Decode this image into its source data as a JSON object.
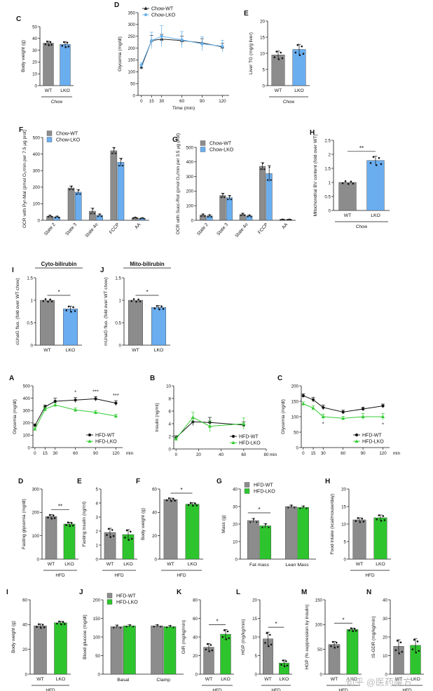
{
  "colors": {
    "wt": "#8c8c8c",
    "lko_chow": "#6aaef0",
    "lko_hfd": "#2ec42e",
    "hfd_line_wt": "#111111",
    "hfd_line_lko": "#33cc33",
    "chow_line_wt": "#222222",
    "chow_line_lko": "#66b2ee"
  },
  "watermark": "知乎 @医药魔方",
  "chart_data": [
    {
      "id": "C_top",
      "panel_label": "C",
      "type": "bar",
      "categories": [
        "WT",
        "LKO"
      ],
      "values": [
        36,
        35
      ],
      "errors": [
        1.6,
        2.2
      ],
      "colors": [
        "wt",
        "lko_chow"
      ],
      "ylabel": "Body weight (g)",
      "ylim": [
        0,
        50
      ],
      "yticks": [
        0,
        10,
        20,
        30,
        40,
        50
      ],
      "group": "Chow"
    },
    {
      "id": "D_top",
      "panel_label": "D",
      "type": "line",
      "x": [
        0,
        15,
        30,
        60,
        90,
        120
      ],
      "xlabel": "Time (min)",
      "ylabel": "Glycemia (mg/dl)",
      "ylim": [
        0,
        350
      ],
      "yticks": [
        0,
        50,
        100,
        150,
        200,
        250,
        300,
        350
      ],
      "xlim": [
        -5,
        130
      ],
      "xticks": [
        0,
        15,
        30,
        60,
        90,
        120
      ],
      "legend": "top-left",
      "series": [
        {
          "name": "Chow-WT",
          "color": "chow_line_wt",
          "marker": "tri",
          "values": [
            120,
            232,
            238,
            232,
            222,
            205
          ],
          "errors": [
            10,
            22,
            20,
            18,
            18,
            15
          ]
        },
        {
          "name": "Chow-LKO",
          "color": "chow_line_lko",
          "marker": "circ",
          "values": [
            128,
            232,
            250,
            235,
            218,
            208
          ],
          "errors": [
            10,
            35,
            45,
            35,
            30,
            25
          ]
        }
      ]
    },
    {
      "id": "E_top",
      "panel_label": "E",
      "type": "bar",
      "categories": [
        "WT",
        "LKO"
      ],
      "values": [
        9.5,
        11.2
      ],
      "errors": [
        1.2,
        1.6
      ],
      "colors": [
        "wt",
        "lko_chow"
      ],
      "ylabel": "Liver TG (mg/g liver)",
      "ylim": [
        0,
        20
      ],
      "yticks": [
        0,
        5,
        10,
        15,
        20
      ],
      "group": "Chow"
    },
    {
      "id": "F_top",
      "panel_label": "F",
      "type": "groupbar",
      "categories": [
        "State 2",
        "State 3",
        "State 4o",
        "FCCP",
        "AA"
      ],
      "xlabel_rot": true,
      "ylabel": "OCR with Pyr-Mal (pmol O₂/min per 7.5 µg prot)",
      "ylim": [
        0,
        500
      ],
      "yticks": [
        0,
        100,
        200,
        300,
        400,
        500
      ],
      "legend": "top-left",
      "series": [
        {
          "name": "Chow-WT",
          "color": "wt",
          "values": [
            25,
            195,
            55,
            420,
            15
          ],
          "errors": [
            5,
            12,
            18,
            20,
            3
          ]
        },
        {
          "name": "Chow-LKO",
          "color": "lko_chow",
          "values": [
            20,
            170,
            30,
            350,
            12
          ],
          "errors": [
            5,
            15,
            8,
            25,
            3
          ]
        }
      ]
    },
    {
      "id": "G_top",
      "panel_label": "G",
      "type": "groupbar",
      "categories": [
        "State 2",
        "State 3",
        "State 4o",
        "FCCP",
        "AA"
      ],
      "xlabel_rot": true,
      "ylabel": "OCR with Succ-Rot (pmol O₂/min per 3.5 µg prot)",
      "ylim": [
        0,
        500
      ],
      "yticks": [
        0,
        100,
        200,
        300,
        400,
        500
      ],
      "legend": "top-left",
      "series": [
        {
          "name": "Chow-WT",
          "color": "wt",
          "values": [
            35,
            170,
            40,
            370,
            5
          ],
          "errors": [
            8,
            15,
            8,
            25,
            2
          ]
        },
        {
          "name": "Chow-LKO",
          "color": "lko_chow",
          "values": [
            30,
            155,
            30,
            320,
            5
          ],
          "errors": [
            8,
            15,
            6,
            55,
            2
          ]
        }
      ]
    },
    {
      "id": "H_top",
      "panel_label": "H",
      "type": "bar",
      "categories": [
        "WT",
        "LKO"
      ],
      "values": [
        1.0,
        1.78
      ],
      "errors": [
        0.0,
        0.15
      ],
      "colors": [
        "wt",
        "lko_chow"
      ],
      "ylabel": "Mitochondrial BV content (fold over WT)",
      "ylim": [
        0,
        2.5
      ],
      "yticks": [
        0,
        0.5,
        1.0,
        1.5,
        2.0,
        2.5
      ],
      "sig": "**",
      "group": "Chow"
    },
    {
      "id": "I_top",
      "panel_label": "I",
      "type": "bar",
      "categories": [
        "WT",
        "LKO"
      ],
      "values": [
        1.0,
        0.81
      ],
      "errors": [
        0.0,
        0.06
      ],
      "colors": [
        "wt",
        "lko_chow"
      ],
      "ylabel": "cUnaG fluo. (fold over WT chow)",
      "ylim": [
        0,
        1.5
      ],
      "yticks": [
        0,
        0.5,
        1.0,
        1.5
      ],
      "sig": "*",
      "title": "Cyto-bilirubin"
    },
    {
      "id": "J_top",
      "panel_label": "J",
      "type": "bar",
      "categories": [
        "WT",
        "LKO"
      ],
      "values": [
        1.0,
        0.84
      ],
      "errors": [
        0.0,
        0.04
      ],
      "colors": [
        "wt",
        "lko_chow"
      ],
      "ylabel": "mUnaG fluo. (fold over WT chow)",
      "ylim": [
        0,
        1.5
      ],
      "yticks": [
        0,
        0.5,
        1.0,
        1.5
      ],
      "sig": "*",
      "title": "Mito-bilirubin"
    },
    {
      "id": "A_mid",
      "panel_label": "A",
      "type": "line",
      "x": [
        0,
        15,
        30,
        60,
        90,
        120
      ],
      "xunit": "min",
      "ylabel": "Glycemia (mg/dl)",
      "ylim": [
        0,
        500
      ],
      "yticks": [
        0,
        100,
        200,
        300,
        400,
        500
      ],
      "xlim": [
        -3,
        130
      ],
      "xticks": [
        0,
        15,
        30,
        60,
        90,
        120
      ],
      "legend": "bottom-right",
      "sig_marks": [
        [
          60,
          "*"
        ],
        [
          90,
          "***"
        ],
        [
          120,
          "***"
        ]
      ],
      "series": [
        {
          "name": "HFD-WT",
          "color": "hfd_line_wt",
          "marker": "circ",
          "values": [
            180,
            330,
            375,
            385,
            395,
            360
          ],
          "errors": [
            12,
            15,
            25,
            20,
            18,
            20
          ]
        },
        {
          "name": "HFD-LKO",
          "color": "hfd_line_lko",
          "marker": "tri",
          "values": [
            150,
            310,
            345,
            305,
            285,
            255
          ],
          "errors": [
            10,
            15,
            15,
            15,
            15,
            15
          ]
        }
      ]
    },
    {
      "id": "B_mid",
      "panel_label": "B",
      "type": "line",
      "x": [
        0,
        15,
        30,
        60
      ],
      "xunit": "min",
      "ylabel": "Insulin (ng/ml)",
      "ylim": [
        0,
        10
      ],
      "yticks": [
        0,
        2,
        4,
        6,
        8,
        10
      ],
      "xlim": [
        -2,
        80
      ],
      "xticks": [
        0,
        20,
        40,
        60,
        80
      ],
      "legend": "bottom-right",
      "series": [
        {
          "name": "HFD-WT",
          "color": "hfd_line_wt",
          "marker": "circ",
          "values": [
            1.8,
            4.3,
            4.2,
            3.8
          ],
          "errors": [
            0.3,
            0.6,
            0.8,
            0.5
          ]
        },
        {
          "name": "HFD-LKO",
          "color": "hfd_line_lko",
          "marker": "tri",
          "values": [
            1.6,
            5.0,
            3.6,
            4.0
          ],
          "errors": [
            0.3,
            0.8,
            0.9,
            0.9
          ]
        }
      ]
    },
    {
      "id": "C_mid",
      "panel_label": "C",
      "type": "line",
      "x": [
        0,
        15,
        30,
        60,
        90,
        120
      ],
      "xunit": "min",
      "ylabel": "Glycemia (mg/dl)",
      "ylim": [
        0,
        200
      ],
      "yticks": [
        0,
        50,
        100,
        150,
        200
      ],
      "xlim": [
        -3,
        130
      ],
      "xticks": [
        0,
        15,
        30,
        60,
        90,
        120
      ],
      "legend": "bottom-right",
      "sig_marks": [
        [
          30,
          "*"
        ],
        [
          120,
          "*"
        ]
      ],
      "series": [
        {
          "name": "HFD-WT",
          "color": "hfd_line_wt",
          "marker": "circ",
          "values": [
            168,
            155,
            130,
            115,
            125,
            135
          ],
          "errors": [
            6,
            8,
            8,
            6,
            6,
            6
          ]
        },
        {
          "name": "HFD-LKO",
          "color": "hfd_line_lko",
          "marker": "tri",
          "values": [
            142,
            128,
            100,
            95,
            100,
            100
          ],
          "errors": [
            6,
            8,
            8,
            6,
            10,
            10
          ]
        }
      ]
    },
    {
      "id": "D_mid",
      "panel_label": "D",
      "type": "bar",
      "categories": [
        "WT",
        "LKO"
      ],
      "values": [
        182,
        150
      ],
      "errors": [
        8,
        8
      ],
      "colors": [
        "wt",
        "lko_hfd"
      ],
      "ylabel": "Fasting glycemia (mg/dl)",
      "ylim": [
        0,
        300
      ],
      "yticks": [
        0,
        100,
        200,
        300
      ],
      "sig": "**",
      "group": "HFD"
    },
    {
      "id": "E_mid",
      "panel_label": "E",
      "type": "bar",
      "categories": [
        "WT",
        "LKO"
      ],
      "values": [
        1.9,
        1.75
      ],
      "errors": [
        0.3,
        0.35
      ],
      "colors": [
        "wt",
        "lko_hfd"
      ],
      "ylabel": "Fasting insulin (ng/ml)",
      "ylim": [
        0,
        5
      ],
      "yticks": [
        0,
        1,
        2,
        3,
        4,
        5
      ],
      "group": "HFD"
    },
    {
      "id": "F_mid",
      "panel_label": "F",
      "type": "bar",
      "categories": [
        "WT",
        "LKO"
      ],
      "values": [
        51,
        47
      ],
      "errors": [
        1.2,
        1.2
      ],
      "colors": [
        "wt",
        "lko_hfd"
      ],
      "ylabel": "Body weight (g)",
      "ylim": [
        0,
        60
      ],
      "yticks": [
        0,
        20,
        40,
        60
      ],
      "sig": "*",
      "group": "HFD"
    },
    {
      "id": "G_mid",
      "panel_label": "G",
      "type": "groupbar",
      "categories": [
        "Fat mass",
        "Lean Mass"
      ],
      "ylabel": "Mass (g)",
      "ylim": [
        0,
        40
      ],
      "yticks": [
        0,
        10,
        20,
        30,
        40
      ],
      "legend": "top-left",
      "sig_group": 0,
      "series": [
        {
          "name": "HFD-WT",
          "color": "wt",
          "values": [
            22,
            30
          ],
          "errors": [
            1.2,
            0.8
          ]
        },
        {
          "name": "HFD-LKO",
          "color": "lko_hfd",
          "values": [
            19,
            29.5
          ],
          "errors": [
            1.2,
            0.8
          ]
        }
      ]
    },
    {
      "id": "H_mid",
      "panel_label": "H",
      "type": "bar",
      "categories": [
        "WT",
        "LKO"
      ],
      "values": [
        11.2,
        11.8
      ],
      "errors": [
        0.6,
        0.8
      ],
      "colors": [
        "wt",
        "lko_hfd"
      ],
      "ylabel": "Food intake (kcal/mouse/day)",
      "ylim": [
        0,
        20
      ],
      "yticks": [
        0,
        5,
        10,
        15,
        20
      ],
      "group": "HFD"
    },
    {
      "id": "I_bot",
      "panel_label": "I",
      "type": "bar",
      "categories": [
        "WT",
        "LKO"
      ],
      "values": [
        39,
        41.5
      ],
      "errors": [
        1.5,
        1.2
      ],
      "colors": [
        "wt",
        "lko_hfd"
      ],
      "ylabel": "Body weight (g)",
      "ylim": [
        0,
        60
      ],
      "yticks": [
        0,
        20,
        40,
        60
      ],
      "group": "HFD"
    },
    {
      "id": "J_bot",
      "panel_label": "J",
      "type": "groupbar",
      "categories": [
        "Basal",
        "Clamp"
      ],
      "ylabel": "Blood glucose (mg/dl)",
      "ylim": [
        0,
        200
      ],
      "yticks": [
        0,
        50,
        100,
        150,
        200
      ],
      "legend": "top-left",
      "series": [
        {
          "name": "HFD-WT",
          "color": "wt",
          "values": [
            128,
            130
          ],
          "errors": [
            4,
            3
          ]
        },
        {
          "name": "HFD-LKO",
          "color": "lko_hfd",
          "values": [
            130,
            128
          ],
          "errors": [
            3,
            3
          ]
        }
      ]
    },
    {
      "id": "K_bot",
      "panel_label": "K",
      "type": "bar",
      "categories": [
        "WT",
        "LKO"
      ],
      "values": [
        29,
        43
      ],
      "errors": [
        4,
        5
      ],
      "colors": [
        "wt",
        "lko_hfd"
      ],
      "ylabel": "GIR (mg/kg/min)",
      "ylim": [
        0,
        80
      ],
      "yticks": [
        0,
        20,
        40,
        60,
        80
      ],
      "sig": "*",
      "group": "HFD"
    },
    {
      "id": "L_bot",
      "panel_label": "L",
      "type": "bar",
      "categories": [
        "WT",
        "LKO"
      ],
      "values": [
        9.5,
        3.0
      ],
      "errors": [
        1.8,
        0.8
      ],
      "colors": [
        "wt",
        "lko_hfd"
      ],
      "ylabel": "HGP (mg/kg/min)",
      "ylim": [
        0,
        20
      ],
      "yticks": [
        0,
        5,
        10,
        15,
        20
      ],
      "sig": "*",
      "group": "HFD"
    },
    {
      "id": "M_bot",
      "panel_label": "M",
      "type": "bar",
      "categories": [
        "WT",
        "LKO"
      ],
      "values": [
        60,
        90
      ],
      "errors": [
        6,
        3
      ],
      "colors": [
        "wt",
        "lko_hfd"
      ],
      "ylabel": "HGP (% suppression by insulin)",
      "ylim": [
        0,
        150
      ],
      "yticks": [
        0,
        50,
        100,
        150
      ],
      "sig": "*",
      "group": "HFD"
    },
    {
      "id": "N_bot",
      "panel_label": "N",
      "type": "bar",
      "categories": [
        "WT",
        "LKO"
      ],
      "values": [
        15,
        15.5
      ],
      "errors": [
        3.5,
        3.5
      ],
      "colors": [
        "wt",
        "lko_hfd"
      ],
      "ylabel": "IS-GDR (mg/kg/min)",
      "ylim": [
        0,
        40
      ],
      "yticks": [
        0,
        10,
        20,
        30,
        40
      ],
      "group": "HFD"
    }
  ]
}
